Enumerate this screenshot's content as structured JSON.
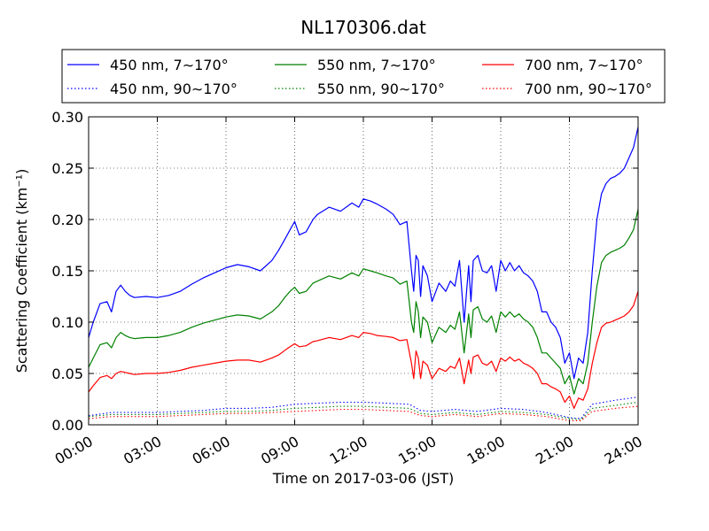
{
  "chart_data": {
    "type": "line",
    "title": "NL170306.dat",
    "xlabel": "Time on 2017-03-06 (JST)",
    "ylabel": "Scattering Coefficient (km⁻¹)",
    "x_unit": "hour",
    "xlim": [
      0,
      24
    ],
    "ylim": [
      0,
      0.3
    ],
    "xticks": [
      {
        "value": 0,
        "label": "00:00"
      },
      {
        "value": 3,
        "label": "03:00"
      },
      {
        "value": 6,
        "label": "06:00"
      },
      {
        "value": 9,
        "label": "09:00"
      },
      {
        "value": 12,
        "label": "12:00"
      },
      {
        "value": 15,
        "label": "15:00"
      },
      {
        "value": 18,
        "label": "18:00"
      },
      {
        "value": 21,
        "label": "21:00"
      },
      {
        "value": 24,
        "label": "24:00"
      }
    ],
    "yticks": [
      {
        "value": 0,
        "label": "0.00"
      },
      {
        "value": 0.05,
        "label": "0.05"
      },
      {
        "value": 0.1,
        "label": "0.10"
      },
      {
        "value": 0.15,
        "label": "0.15"
      },
      {
        "value": 0.2,
        "label": "0.20"
      },
      {
        "value": 0.25,
        "label": "0.25"
      },
      {
        "value": 0.3,
        "label": "0.30"
      }
    ],
    "grid": true,
    "legend_position": "top",
    "series": [
      {
        "name": "450 nm, 7∼170°",
        "color": "#0000ff",
        "style": "solid",
        "x": [
          0,
          0.2,
          0.5,
          0.8,
          1.0,
          1.2,
          1.4,
          1.6,
          1.8,
          2.0,
          2.5,
          3.0,
          3.5,
          4.0,
          4.5,
          5.0,
          5.5,
          6.0,
          6.5,
          7.0,
          7.5,
          8.0,
          8.3,
          8.6,
          8.8,
          9.0,
          9.2,
          9.5,
          9.8,
          10.0,
          10.5,
          11.0,
          11.5,
          11.8,
          12.0,
          12.3,
          12.6,
          13.0,
          13.3,
          13.6,
          13.9,
          14.1,
          14.2,
          14.3,
          14.4,
          14.5,
          14.6,
          14.8,
          15.0,
          15.3,
          15.6,
          15.8,
          16.0,
          16.2,
          16.4,
          16.6,
          16.7,
          16.8,
          17.0,
          17.2,
          17.4,
          17.6,
          17.8,
          18.0,
          18.2,
          18.4,
          18.6,
          18.8,
          19.0,
          19.2,
          19.4,
          19.6,
          19.8,
          20.0,
          20.2,
          20.4,
          20.6,
          20.8,
          21.0,
          21.2,
          21.4,
          21.6,
          21.8,
          22.0,
          22.2,
          22.4,
          22.6,
          22.8,
          23.0,
          23.2,
          23.4,
          23.6,
          23.8,
          24.0
        ],
        "y": [
          0.085,
          0.1,
          0.118,
          0.12,
          0.11,
          0.13,
          0.136,
          0.13,
          0.126,
          0.124,
          0.125,
          0.124,
          0.126,
          0.13,
          0.137,
          0.143,
          0.148,
          0.153,
          0.156,
          0.154,
          0.15,
          0.16,
          0.17,
          0.182,
          0.19,
          0.198,
          0.185,
          0.188,
          0.2,
          0.205,
          0.212,
          0.208,
          0.216,
          0.212,
          0.22,
          0.218,
          0.215,
          0.21,
          0.205,
          0.195,
          0.198,
          0.15,
          0.13,
          0.165,
          0.16,
          0.125,
          0.155,
          0.145,
          0.12,
          0.138,
          0.13,
          0.14,
          0.135,
          0.16,
          0.1,
          0.155,
          0.12,
          0.16,
          0.165,
          0.15,
          0.148,
          0.155,
          0.13,
          0.16,
          0.15,
          0.158,
          0.15,
          0.155,
          0.148,
          0.145,
          0.14,
          0.13,
          0.11,
          0.11,
          0.1,
          0.095,
          0.085,
          0.06,
          0.07,
          0.045,
          0.065,
          0.06,
          0.09,
          0.15,
          0.2,
          0.225,
          0.235,
          0.24,
          0.242,
          0.245,
          0.25,
          0.26,
          0.27,
          0.29
        ]
      },
      {
        "name": "550 nm, 7∼170°",
        "color": "#008000",
        "style": "solid",
        "x": [
          0,
          0.2,
          0.5,
          0.8,
          1.0,
          1.2,
          1.4,
          1.6,
          1.8,
          2.0,
          2.5,
          3.0,
          3.5,
          4.0,
          4.5,
          5.0,
          5.5,
          6.0,
          6.5,
          7.0,
          7.5,
          8.0,
          8.3,
          8.6,
          8.8,
          9.0,
          9.2,
          9.5,
          9.8,
          10.0,
          10.5,
          11.0,
          11.5,
          11.8,
          12.0,
          12.3,
          12.6,
          13.0,
          13.3,
          13.6,
          13.9,
          14.1,
          14.2,
          14.3,
          14.4,
          14.5,
          14.6,
          14.8,
          15.0,
          15.3,
          15.6,
          15.8,
          16.0,
          16.2,
          16.4,
          16.6,
          16.7,
          16.8,
          17.0,
          17.2,
          17.4,
          17.6,
          17.8,
          18.0,
          18.2,
          18.4,
          18.6,
          18.8,
          19.0,
          19.2,
          19.4,
          19.6,
          19.8,
          20.0,
          20.2,
          20.4,
          20.6,
          20.8,
          21.0,
          21.2,
          21.4,
          21.6,
          21.8,
          22.0,
          22.2,
          22.4,
          22.6,
          22.8,
          23.0,
          23.2,
          23.4,
          23.6,
          23.8,
          24.0
        ],
        "y": [
          0.056,
          0.065,
          0.078,
          0.08,
          0.075,
          0.085,
          0.09,
          0.087,
          0.085,
          0.084,
          0.085,
          0.085,
          0.087,
          0.09,
          0.095,
          0.099,
          0.102,
          0.105,
          0.107,
          0.106,
          0.103,
          0.11,
          0.116,
          0.125,
          0.13,
          0.134,
          0.128,
          0.13,
          0.138,
          0.14,
          0.145,
          0.142,
          0.148,
          0.145,
          0.152,
          0.15,
          0.148,
          0.145,
          0.143,
          0.137,
          0.14,
          0.1,
          0.09,
          0.12,
          0.11,
          0.085,
          0.105,
          0.1,
          0.08,
          0.095,
          0.09,
          0.097,
          0.093,
          0.11,
          0.07,
          0.108,
          0.085,
          0.112,
          0.115,
          0.103,
          0.1,
          0.106,
          0.09,
          0.11,
          0.105,
          0.11,
          0.105,
          0.108,
          0.103,
          0.1,
          0.095,
          0.085,
          0.07,
          0.07,
          0.065,
          0.06,
          0.055,
          0.04,
          0.048,
          0.03,
          0.045,
          0.04,
          0.06,
          0.1,
          0.135,
          0.158,
          0.165,
          0.168,
          0.17,
          0.172,
          0.175,
          0.182,
          0.19,
          0.21
        ]
      },
      {
        "name": "700 nm, 7∼170°",
        "color": "#ff0000",
        "style": "solid",
        "x": [
          0,
          0.2,
          0.5,
          0.8,
          1.0,
          1.2,
          1.4,
          1.6,
          1.8,
          2.0,
          2.5,
          3.0,
          3.5,
          4.0,
          4.5,
          5.0,
          5.5,
          6.0,
          6.5,
          7.0,
          7.5,
          8.0,
          8.3,
          8.6,
          8.8,
          9.0,
          9.2,
          9.5,
          9.8,
          10.0,
          10.5,
          11.0,
          11.5,
          11.8,
          12.0,
          12.3,
          12.6,
          13.0,
          13.3,
          13.6,
          13.9,
          14.1,
          14.2,
          14.3,
          14.4,
          14.5,
          14.6,
          14.8,
          15.0,
          15.3,
          15.6,
          15.8,
          16.0,
          16.2,
          16.4,
          16.6,
          16.7,
          16.8,
          17.0,
          17.2,
          17.4,
          17.6,
          17.8,
          18.0,
          18.2,
          18.4,
          18.6,
          18.8,
          19.0,
          19.2,
          19.4,
          19.6,
          19.8,
          20.0,
          20.2,
          20.4,
          20.6,
          20.8,
          21.0,
          21.2,
          21.4,
          21.6,
          21.8,
          22.0,
          22.2,
          22.4,
          22.6,
          22.8,
          23.0,
          23.2,
          23.4,
          23.6,
          23.8,
          24.0
        ],
        "y": [
          0.032,
          0.038,
          0.046,
          0.048,
          0.045,
          0.05,
          0.052,
          0.051,
          0.05,
          0.049,
          0.05,
          0.05,
          0.051,
          0.053,
          0.056,
          0.058,
          0.06,
          0.062,
          0.063,
          0.063,
          0.061,
          0.065,
          0.068,
          0.073,
          0.076,
          0.079,
          0.076,
          0.077,
          0.081,
          0.082,
          0.085,
          0.083,
          0.087,
          0.085,
          0.09,
          0.089,
          0.087,
          0.086,
          0.085,
          0.082,
          0.083,
          0.06,
          0.045,
          0.072,
          0.065,
          0.045,
          0.062,
          0.058,
          0.045,
          0.055,
          0.052,
          0.057,
          0.055,
          0.065,
          0.04,
          0.063,
          0.05,
          0.066,
          0.068,
          0.06,
          0.058,
          0.062,
          0.052,
          0.065,
          0.062,
          0.066,
          0.062,
          0.064,
          0.06,
          0.058,
          0.055,
          0.05,
          0.04,
          0.04,
          0.037,
          0.035,
          0.032,
          0.022,
          0.028,
          0.016,
          0.026,
          0.024,
          0.035,
          0.06,
          0.08,
          0.095,
          0.099,
          0.1,
          0.102,
          0.104,
          0.106,
          0.11,
          0.116,
          0.13
        ]
      },
      {
        "name": "450 nm, 90∼170°",
        "color": "#0000ff",
        "style": "dotted",
        "x": [
          0,
          1,
          2,
          3,
          4,
          5,
          6,
          7,
          8,
          9,
          10,
          11,
          12,
          13,
          14,
          14.5,
          15,
          16,
          17,
          18,
          19,
          20,
          21,
          21.5,
          22,
          23,
          24
        ],
        "y": [
          0.009,
          0.012,
          0.012,
          0.012,
          0.013,
          0.014,
          0.016,
          0.016,
          0.017,
          0.02,
          0.021,
          0.022,
          0.022,
          0.021,
          0.02,
          0.014,
          0.013,
          0.015,
          0.013,
          0.016,
          0.015,
          0.012,
          0.007,
          0.006,
          0.02,
          0.024,
          0.027
        ]
      },
      {
        "name": "550 nm, 90∼170°",
        "color": "#008000",
        "style": "dotted",
        "x": [
          0,
          1,
          2,
          3,
          4,
          5,
          6,
          7,
          8,
          9,
          10,
          11,
          12,
          13,
          14,
          14.5,
          15,
          16,
          17,
          18,
          19,
          20,
          21,
          21.5,
          22,
          23,
          24
        ],
        "y": [
          0.008,
          0.01,
          0.01,
          0.01,
          0.011,
          0.012,
          0.013,
          0.013,
          0.014,
          0.016,
          0.017,
          0.018,
          0.018,
          0.017,
          0.016,
          0.011,
          0.01,
          0.012,
          0.01,
          0.013,
          0.012,
          0.01,
          0.006,
          0.005,
          0.016,
          0.019,
          0.022
        ]
      },
      {
        "name": "700 nm, 90∼170°",
        "color": "#ff0000",
        "style": "dotted",
        "x": [
          0,
          1,
          2,
          3,
          4,
          5,
          6,
          7,
          8,
          9,
          10,
          11,
          12,
          13,
          14,
          14.5,
          15,
          16,
          17,
          18,
          19,
          20,
          21,
          21.5,
          22,
          23,
          24
        ],
        "y": [
          0.006,
          0.008,
          0.008,
          0.008,
          0.009,
          0.01,
          0.011,
          0.011,
          0.012,
          0.013,
          0.014,
          0.015,
          0.015,
          0.014,
          0.013,
          0.009,
          0.008,
          0.01,
          0.008,
          0.011,
          0.01,
          0.008,
          0.004,
          0.004,
          0.013,
          0.016,
          0.018
        ]
      }
    ],
    "legend_order": [
      0,
      1,
      2,
      3,
      4,
      5
    ]
  }
}
